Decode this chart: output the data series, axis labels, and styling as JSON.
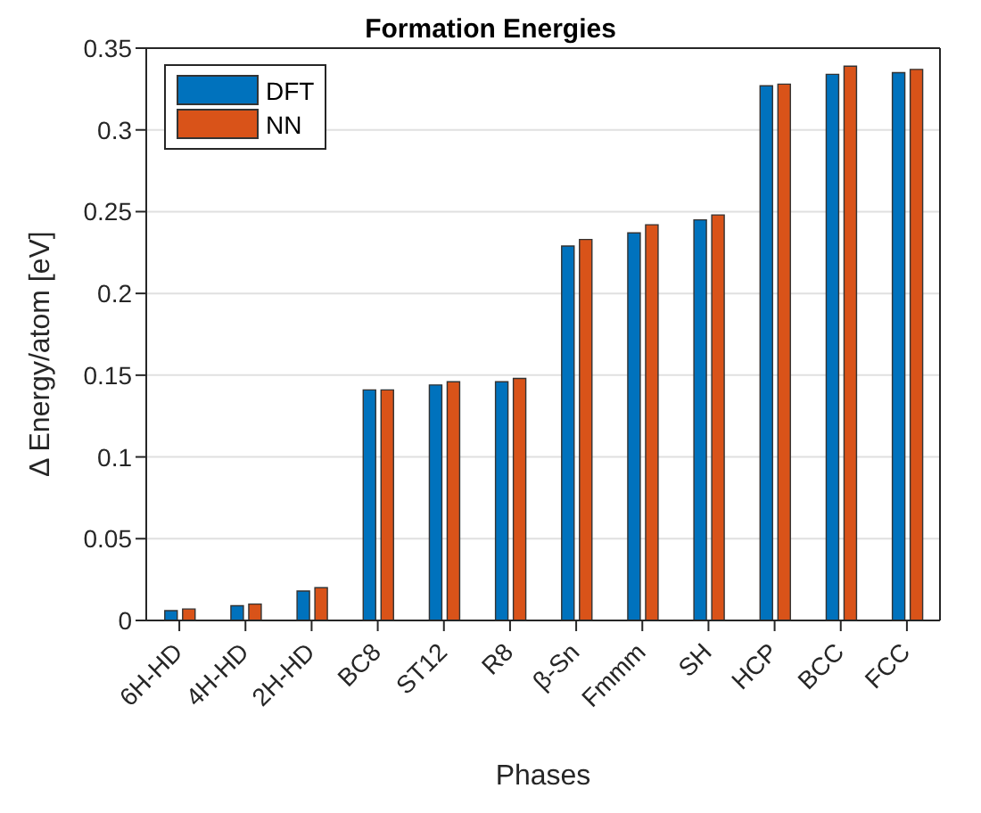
{
  "chart_data": {
    "type": "bar",
    "title": "Formation Energies",
    "xlabel": "Phases",
    "ylabel": "Δ Energy/atom [eV]",
    "categories": [
      "6H-HD",
      "4H-HD",
      "2H-HD",
      "BC8",
      "ST12",
      "R8",
      "β-Sn",
      "Fmmm",
      "SH",
      "HCP",
      "BCC",
      "FCC"
    ],
    "series": [
      {
        "name": "DFT",
        "color": "#0072bd",
        "values": [
          0.006,
          0.009,
          0.018,
          0.141,
          0.144,
          0.146,
          0.229,
          0.237,
          0.245,
          0.327,
          0.334,
          0.335
        ]
      },
      {
        "name": "NN",
        "color": "#d95319",
        "values": [
          0.007,
          0.01,
          0.02,
          0.141,
          0.146,
          0.148,
          0.233,
          0.242,
          0.248,
          0.328,
          0.339,
          0.337
        ]
      }
    ],
    "ylim": [
      0,
      0.35
    ],
    "yticks": [
      0,
      0.05,
      0.1,
      0.15,
      0.2,
      0.25,
      0.3,
      0.35
    ],
    "grid": "y",
    "legend": "top left"
  }
}
